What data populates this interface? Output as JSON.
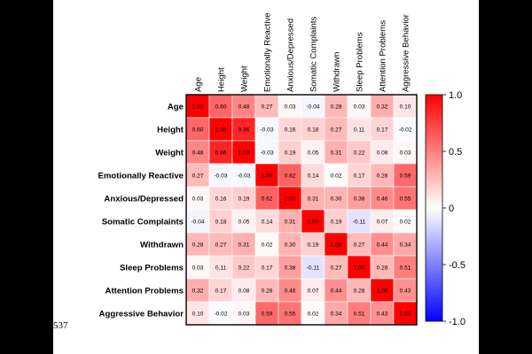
{
  "page": {
    "page_number": "537"
  },
  "chart_data": {
    "type": "heatmap",
    "title": "",
    "variables": [
      "Age",
      "Height",
      "Weight",
      "Emotionally Reactive",
      "Anxious/Depressed",
      "Somatic Complaints",
      "Withdrawn",
      "Sleep Problems",
      "Attention Problems",
      "Aggressive Behavior"
    ],
    "matrix": [
      [
        1.0,
        0.6,
        0.48,
        0.27,
        0.03,
        -0.04,
        0.28,
        0.03,
        0.32,
        0.1
      ],
      [
        0.6,
        1.0,
        0.86,
        -0.03,
        0.16,
        0.18,
        0.27,
        0.11,
        0.17,
        -0.02
      ],
      [
        0.48,
        0.86,
        1.0,
        -0.03,
        0.19,
        0.05,
        0.31,
        0.22,
        0.08,
        0.03
      ],
      [
        0.27,
        -0.03,
        -0.03,
        1.0,
        0.62,
        0.14,
        0.02,
        0.17,
        0.28,
        0.59
      ],
      [
        0.03,
        0.16,
        0.19,
        0.62,
        1.0,
        0.31,
        0.3,
        0.38,
        0.46,
        0.55
      ],
      [
        -0.04,
        0.18,
        0.05,
        0.14,
        0.31,
        1.0,
        0.19,
        -0.11,
        0.07,
        0.02
      ],
      [
        0.28,
        0.27,
        0.31,
        0.02,
        0.3,
        0.19,
        1.0,
        0.27,
        0.44,
        0.34
      ],
      [
        0.03,
        0.11,
        0.22,
        0.17,
        0.38,
        -0.11,
        0.27,
        1.0,
        0.28,
        0.51
      ],
      [
        0.32,
        0.17,
        0.08,
        0.28,
        0.46,
        0.07,
        0.44,
        0.28,
        1.0,
        0.43
      ],
      [
        0.1,
        -0.02,
        0.03,
        0.59,
        0.55,
        0.02,
        0.34,
        0.51,
        0.43,
        1.0
      ]
    ],
    "colorbar": {
      "range": [
        -1.0,
        1.0
      ],
      "ticks": [
        "1.0",
        "0.5",
        "0",
        "-0.5",
        "-1.0"
      ],
      "tick_values": [
        1.0,
        0.5,
        0,
        -0.5,
        -1.0
      ],
      "colors": {
        "negative": "#0000ff",
        "zero": "#ffffff",
        "positive": "#ff0000"
      }
    }
  }
}
